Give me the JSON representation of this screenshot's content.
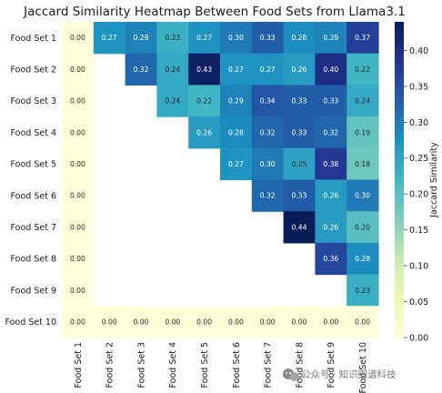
{
  "chart_data": {
    "type": "heatmap",
    "title": "Jaccard Similarity Heatmap Between Food Sets from Llama3.1",
    "rows": [
      "Food Set 1",
      "Food Set 2",
      "Food Set 3",
      "Food Set 4",
      "Food Set 5",
      "Food Set 6",
      "Food Set 7",
      "Food Set 8",
      "Food Set 9",
      "Food Set 10"
    ],
    "columns": [
      "Food Set 1",
      "Food Set 2",
      "Food Set 3",
      "Food Set 4",
      "Food Set 5",
      "Food Set 6",
      "Food Set 7",
      "Food Set 8",
      "Food Set 9",
      "Food Set 10"
    ],
    "values": [
      [
        0.0,
        0.27,
        0.29,
        0.23,
        0.27,
        0.3,
        0.33,
        0.28,
        0.29,
        0.37
      ],
      [
        0.0,
        null,
        0.32,
        0.24,
        0.43,
        0.27,
        0.27,
        0.26,
        0.4,
        0.22
      ],
      [
        0.0,
        null,
        null,
        0.24,
        0.22,
        0.29,
        0.34,
        0.33,
        0.33,
        0.24
      ],
      [
        0.0,
        null,
        null,
        null,
        0.26,
        0.28,
        0.32,
        0.33,
        0.32,
        0.19
      ],
      [
        0.0,
        null,
        null,
        null,
        null,
        0.27,
        0.3,
        0.25,
        0.38,
        0.18
      ],
      [
        0.0,
        null,
        null,
        null,
        null,
        null,
        0.32,
        0.33,
        0.26,
        0.3
      ],
      [
        0.0,
        null,
        null,
        null,
        null,
        null,
        null,
        0.44,
        0.26,
        0.2
      ],
      [
        0.0,
        null,
        null,
        null,
        null,
        null,
        null,
        null,
        0.36,
        0.28
      ],
      [
        0.0,
        null,
        null,
        null,
        null,
        null,
        null,
        null,
        null,
        0.23
      ],
      [
        0.0,
        0.0,
        0.0,
        0.0,
        0.0,
        0.0,
        0.0,
        0.0,
        0.0,
        0.0
      ]
    ],
    "value_labels": [
      [
        "0.00",
        "0.27",
        "0.29",
        "0.23",
        "0.27",
        "0.30",
        "0.33",
        "0.28",
        "0.29",
        "0.37"
      ],
      [
        "0.00",
        "",
        "0.32",
        "0.24",
        "0.43",
        "0.27",
        "0.27",
        "0.26",
        "0.40",
        "0.22"
      ],
      [
        "0.00",
        "",
        "",
        "0.24",
        "0.22",
        "0.29",
        "0.34",
        "0.33",
        "0.33",
        "0.24"
      ],
      [
        "0.00",
        "",
        "",
        "",
        "0.26",
        "0.28",
        "0.32",
        "0.33",
        "0.32",
        "0.19"
      ],
      [
        "0.00",
        "",
        "",
        "",
        "",
        "0.27",
        "0.30",
        "0.25",
        "0.38",
        "0.18"
      ],
      [
        "0.00",
        "",
        "",
        "",
        "",
        "",
        "0.32",
        "0.33",
        "0.26",
        "0.30"
      ],
      [
        "0.00",
        "",
        "",
        "",
        "",
        "",
        "",
        "0.44",
        "0.26",
        "0.20"
      ],
      [
        "0.00",
        "",
        "",
        "",
        "",
        "",
        "",
        "",
        "0.36",
        "0.28"
      ],
      [
        "0.00",
        "",
        "",
        "",
        "",
        "",
        "",
        "",
        "",
        "0.23"
      ],
      [
        "0.00",
        "0.00",
        "0.00",
        "0.00",
        "0.00",
        "0.00",
        "0.00",
        "0.00",
        "0.00",
        "0.00"
      ]
    ],
    "colormap": "YlGnBu",
    "vmin": 0.0,
    "vmax": 0.44,
    "colorbar": {
      "label": "Jaccard Similarity",
      "ticks": [
        0.0,
        0.05,
        0.1,
        0.15,
        0.2,
        0.25,
        0.3,
        0.35,
        0.4
      ],
      "tick_labels": [
        "0.00",
        "0.05",
        "0.10",
        "0.15",
        "0.20",
        "0.25",
        "0.30",
        "0.35",
        "0.40"
      ]
    },
    "grid": false,
    "legend": "right"
  },
  "watermark": {
    "icon": "wechat-icon",
    "text": "公众号 · 知识图谱科技"
  }
}
